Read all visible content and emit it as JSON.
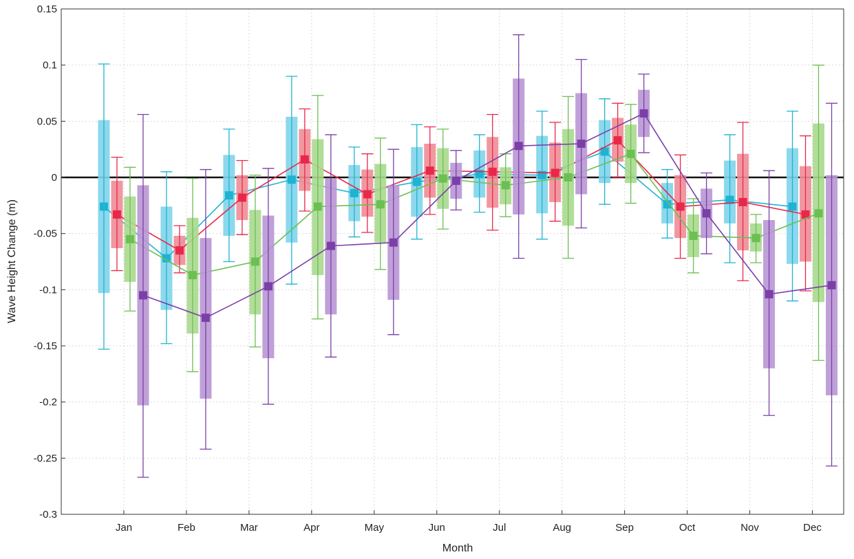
{
  "chart_data": {
    "type": "line",
    "title": "",
    "xlabel": "Month",
    "ylabel": "Wave Height Change (m)",
    "categories": [
      "Jan",
      "Feb",
      "Mar",
      "Apr",
      "May",
      "Jun",
      "Jul",
      "Aug",
      "Sep",
      "Oct",
      "Nov",
      "Dec"
    ],
    "ylim": [
      -0.3,
      0.15
    ],
    "yticks": [
      0.15,
      0.1,
      0.05,
      0,
      -0.05,
      -0.1,
      -0.15,
      -0.2,
      -0.25,
      -0.3
    ],
    "ytick_labels": [
      "0.15",
      "0.1",
      "0.05",
      "0",
      "-0.05",
      "-0.1",
      "-0.15",
      "-0.2",
      "-0.25",
      "-0.3"
    ],
    "grid": true,
    "zero_line": true,
    "series": [
      {
        "color": "#1fb3d2",
        "box_color": "#7fd4ea",
        "values": [
          -0.026,
          -0.072,
          -0.016,
          -0.002,
          -0.014,
          -0.004,
          0.003,
          0.002,
          0.023,
          -0.024,
          -0.02,
          -0.026
        ],
        "box_low": [
          -0.103,
          -0.118,
          -0.052,
          -0.058,
          -0.039,
          -0.035,
          -0.018,
          -0.032,
          -0.005,
          -0.041,
          -0.041,
          -0.077
        ],
        "box_high": [
          0.051,
          -0.026,
          0.02,
          0.054,
          0.011,
          0.027,
          0.024,
          0.037,
          0.051,
          -0.005,
          0.015,
          0.026
        ],
        "err_low": [
          -0.153,
          -0.148,
          -0.075,
          -0.095,
          -0.053,
          -0.055,
          -0.031,
          -0.055,
          -0.024,
          -0.054,
          -0.076,
          -0.11
        ],
        "err_high": [
          0.101,
          0.005,
          0.043,
          0.09,
          0.027,
          0.047,
          0.038,
          0.059,
          0.07,
          0.007,
          0.038,
          0.059
        ]
      },
      {
        "color": "#e8284a",
        "box_color": "#f08c96",
        "values": [
          -0.033,
          -0.065,
          -0.018,
          0.016,
          -0.015,
          0.006,
          0.005,
          0.004,
          0.033,
          -0.026,
          -0.022,
          -0.033
        ],
        "box_low": [
          -0.063,
          -0.078,
          -0.038,
          -0.012,
          -0.035,
          -0.018,
          -0.027,
          -0.022,
          0.014,
          -0.054,
          -0.065,
          -0.075
        ],
        "box_high": [
          -0.003,
          -0.052,
          0.002,
          0.043,
          0.007,
          0.03,
          0.036,
          0.031,
          0.053,
          0.002,
          0.021,
          0.01
        ],
        "err_low": [
          -0.083,
          -0.085,
          -0.051,
          -0.03,
          -0.049,
          -0.033,
          -0.047,
          -0.039,
          0.0,
          -0.072,
          -0.092,
          -0.101
        ],
        "err_high": [
          0.018,
          -0.043,
          0.015,
          0.061,
          0.021,
          0.045,
          0.056,
          0.049,
          0.066,
          0.02,
          0.049,
          0.037
        ]
      },
      {
        "color": "#6cbf52",
        "box_color": "#a9d98e",
        "values": [
          -0.055,
          -0.087,
          -0.075,
          -0.026,
          -0.024,
          -0.001,
          -0.007,
          0.0,
          0.021,
          -0.052,
          -0.054,
          -0.032
        ],
        "box_low": [
          -0.093,
          -0.139,
          -0.122,
          -0.087,
          -0.058,
          -0.028,
          -0.024,
          -0.043,
          -0.005,
          -0.071,
          -0.066,
          -0.111
        ],
        "box_high": [
          -0.017,
          -0.036,
          -0.029,
          0.034,
          0.012,
          0.026,
          0.009,
          0.043,
          0.047,
          -0.033,
          -0.041,
          0.048
        ],
        "err_low": [
          -0.119,
          -0.173,
          -0.151,
          -0.126,
          -0.082,
          -0.046,
          -0.035,
          -0.072,
          -0.023,
          -0.085,
          -0.076,
          -0.163
        ],
        "err_high": [
          0.009,
          -0.001,
          0.002,
          0.073,
          0.035,
          0.043,
          0.021,
          0.072,
          0.065,
          -0.019,
          -0.033,
          0.1
        ]
      },
      {
        "color": "#7b3fa8",
        "box_color": "#b896d4",
        "values": [
          -0.105,
          -0.125,
          -0.097,
          -0.061,
          -0.058,
          -0.003,
          0.028,
          0.03,
          0.057,
          -0.032,
          -0.104,
          -0.096
        ],
        "box_low": [
          -0.203,
          -0.197,
          -0.161,
          -0.122,
          -0.109,
          -0.019,
          -0.033,
          -0.015,
          0.036,
          -0.054,
          -0.17,
          -0.194
        ],
        "box_high": [
          -0.007,
          -0.054,
          -0.034,
          -0.001,
          -0.007,
          0.013,
          0.088,
          0.075,
          0.078,
          -0.01,
          -0.038,
          0.002
        ],
        "err_low": [
          -0.267,
          -0.242,
          -0.202,
          -0.16,
          -0.14,
          -0.029,
          -0.072,
          -0.045,
          0.022,
          -0.068,
          -0.212,
          -0.257
        ],
        "err_high": [
          0.056,
          0.007,
          0.008,
          0.038,
          0.025,
          0.024,
          0.127,
          0.105,
          0.092,
          0.004,
          0.006,
          0.066
        ]
      }
    ]
  }
}
